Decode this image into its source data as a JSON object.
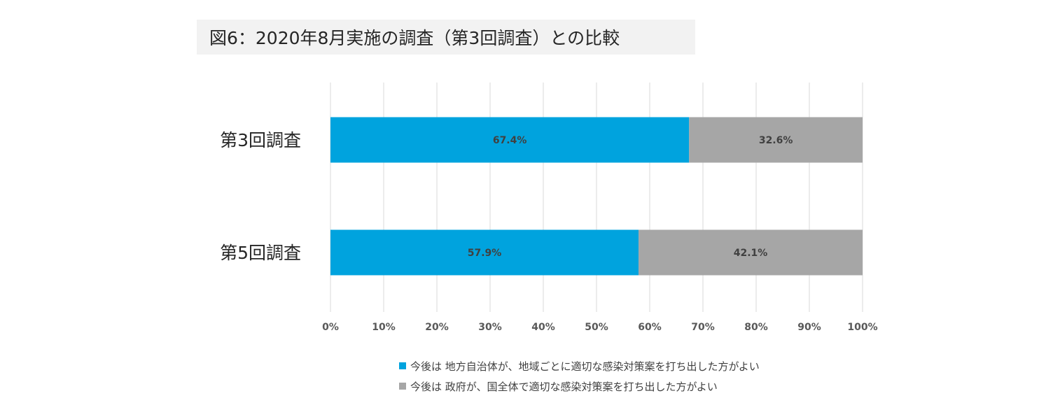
{
  "chart_data": {
    "type": "bar",
    "orientation": "horizontal",
    "stacked": true,
    "title": "図6：2020年8月実施の調査（第3回調査）との比較",
    "categories": [
      "第3回調査",
      "第5回調査"
    ],
    "series": [
      {
        "name": "今後は 地方自治体が、地域ごとに適切な感染対策案を打ち出した方がよい",
        "values": [
          67.4,
          57.9
        ],
        "labels": [
          "67.4%",
          "57.9%"
        ],
        "color": "#00a3de"
      },
      {
        "name": "今後は 政府が、国全体で適切な感染対策案を打ち出した方がよい",
        "values": [
          32.6,
          42.1
        ],
        "labels": [
          "32.6%",
          "42.1%"
        ],
        "color": "#a6a6a6"
      }
    ],
    "xlim": [
      0,
      100
    ],
    "xticks": [
      0,
      10,
      20,
      30,
      40,
      50,
      60,
      70,
      80,
      90,
      100
    ],
    "xtick_labels": [
      "0%",
      "10%",
      "20%",
      "30%",
      "40%",
      "50%",
      "60%",
      "70%",
      "80%",
      "90%",
      "100%"
    ],
    "grid": true,
    "gridline_color": "#d9d9d9",
    "legend_position": "bottom"
  }
}
